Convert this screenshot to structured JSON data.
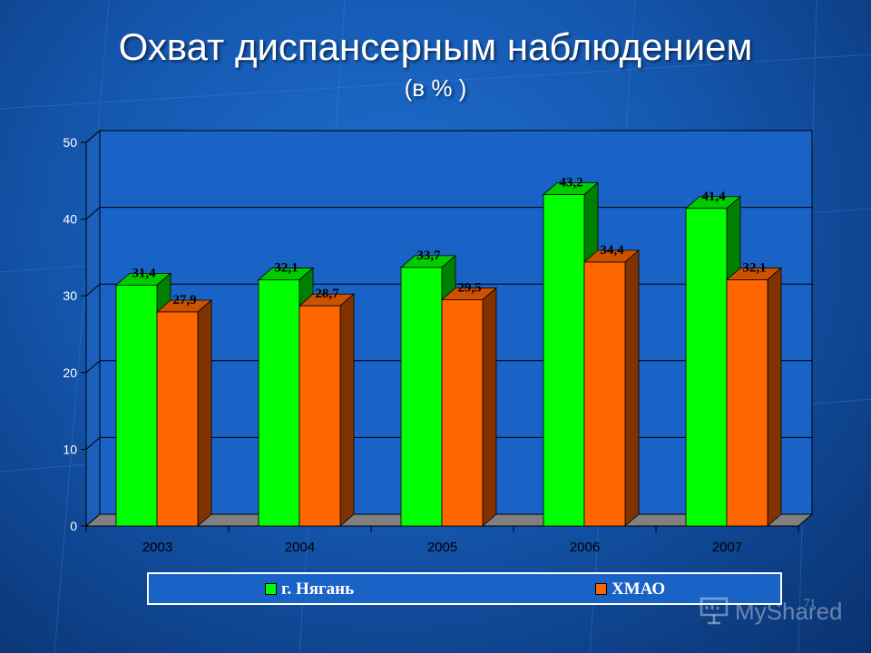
{
  "slide": {
    "title": "Охват диспансерным наблюдением",
    "subtitle": "(в % )",
    "page_number": "71",
    "watermark": "MyShared"
  },
  "colors": {
    "background": "#1558b0",
    "series_1": "#00ff00",
    "series_2": "#ff6600",
    "wall": "#1a63c6",
    "floor": "#808080",
    "text": "#ffffff"
  },
  "chart_data": {
    "type": "bar",
    "categories": [
      "2003",
      "2004",
      "2005",
      "2006",
      "2007"
    ],
    "series": [
      {
        "name": "г. Нягань",
        "values": [
          31.4,
          32.1,
          33.7,
          43.2,
          41.4
        ],
        "labels": [
          "31,4",
          "32,1",
          "33,7",
          "43,2",
          "41,4"
        ]
      },
      {
        "name": "ХМАО",
        "values": [
          27.9,
          28.7,
          29.5,
          34.4,
          32.1
        ],
        "labels": [
          "27,9",
          "28,7",
          "29,5",
          "34,4",
          "32,1"
        ]
      }
    ],
    "yticks": [
      "0",
      "10",
      "20",
      "30",
      "40",
      "50"
    ],
    "ylim": [
      0,
      50
    ],
    "grid": true,
    "legend_position": "bottom"
  }
}
